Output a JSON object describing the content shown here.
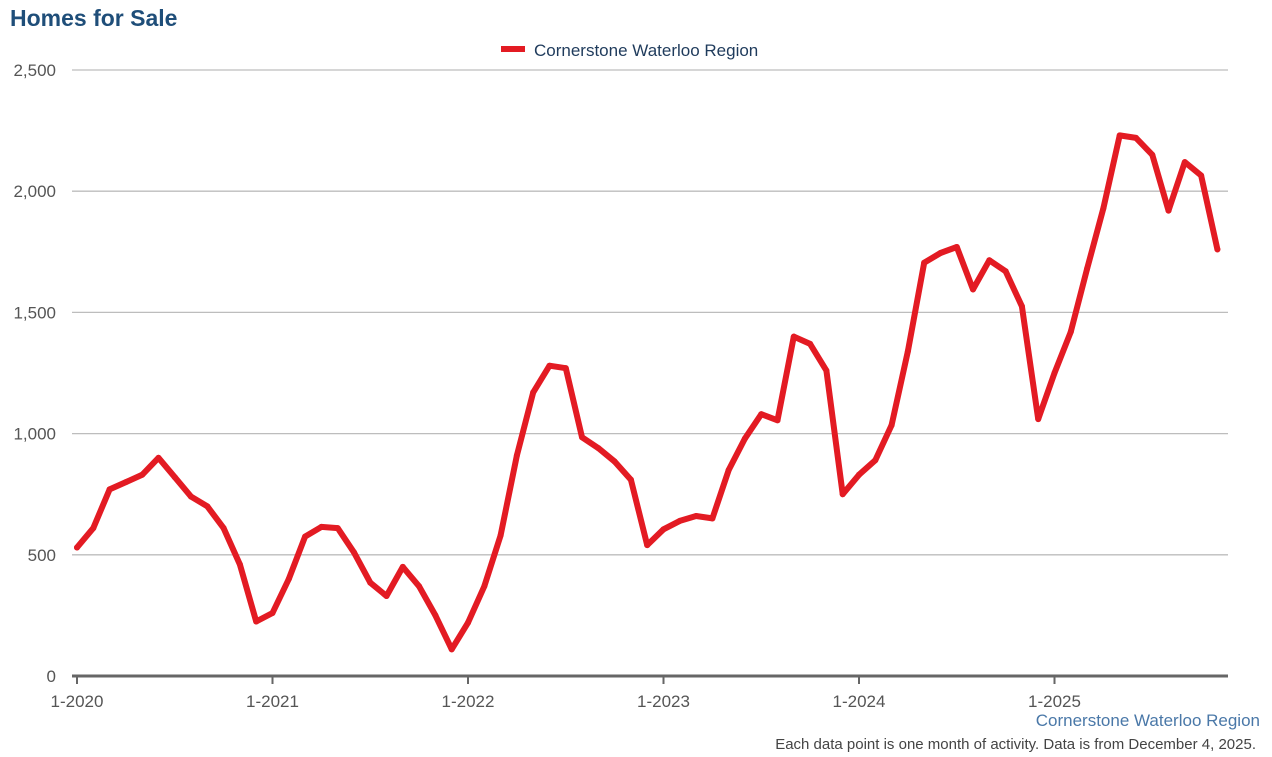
{
  "title": "Homes for Sale",
  "source_label": "Cornerstone Waterloo Region",
  "footnote": "Each data point is one month of activity. Data is from December 4, 2025.",
  "colors": {
    "series": "#e31b23",
    "grid": "#bdbdbd",
    "axis": "#666666",
    "title": "#1f4e79"
  },
  "chart_data": {
    "type": "line",
    "title": "Homes for Sale",
    "legend_position": "top-center",
    "grid": true,
    "xlabel": "",
    "ylabel": "",
    "ylim": [
      0,
      2500
    ],
    "y_ticks": [
      0,
      500,
      1000,
      1500,
      2000,
      2500
    ],
    "y_tick_labels": [
      "0",
      "500",
      "1,000",
      "1,500",
      "2,000",
      "2,500"
    ],
    "x_tick_labels": [
      "1-2020",
      "1-2021",
      "1-2022",
      "1-2023",
      "1-2024",
      "1-2025"
    ],
    "x": [
      "2020-01",
      "2020-02",
      "2020-03",
      "2020-04",
      "2020-05",
      "2020-06",
      "2020-07",
      "2020-08",
      "2020-09",
      "2020-10",
      "2020-11",
      "2020-12",
      "2021-01",
      "2021-02",
      "2021-03",
      "2021-04",
      "2021-05",
      "2021-06",
      "2021-07",
      "2021-08",
      "2021-09",
      "2021-10",
      "2021-11",
      "2021-12",
      "2022-01",
      "2022-02",
      "2022-03",
      "2022-04",
      "2022-05",
      "2022-06",
      "2022-07",
      "2022-08",
      "2022-09",
      "2022-10",
      "2022-11",
      "2022-12",
      "2023-01",
      "2023-02",
      "2023-03",
      "2023-04",
      "2023-05",
      "2023-06",
      "2023-07",
      "2023-08",
      "2023-09",
      "2023-10",
      "2023-11",
      "2023-12",
      "2024-01",
      "2024-02",
      "2024-03",
      "2024-04",
      "2024-05",
      "2024-06",
      "2024-07",
      "2024-08",
      "2024-09",
      "2024-10",
      "2024-11",
      "2024-12",
      "2025-01",
      "2025-02",
      "2025-03",
      "2025-04",
      "2025-05",
      "2025-06",
      "2025-07",
      "2025-08",
      "2025-09",
      "2025-10",
      "2025-11"
    ],
    "series": [
      {
        "name": "Cornerstone Waterloo Region",
        "color": "#e31b23",
        "values": [
          530,
          610,
          770,
          800,
          830,
          900,
          820,
          740,
          700,
          610,
          460,
          225,
          260,
          400,
          575,
          615,
          610,
          510,
          385,
          330,
          450,
          370,
          250,
          110,
          220,
          370,
          580,
          910,
          1170,
          1280,
          1270,
          985,
          940,
          885,
          810,
          540,
          605,
          640,
          660,
          650,
          850,
          980,
          1080,
          1055,
          1400,
          1370,
          1260,
          750,
          830,
          890,
          1035,
          1340,
          1705,
          1745,
          1770,
          1595,
          1715,
          1670,
          1525,
          1060,
          1250,
          1420,
          1680,
          1930,
          2230,
          2220,
          2150,
          1920,
          2120,
          2065,
          1760
        ]
      }
    ]
  }
}
